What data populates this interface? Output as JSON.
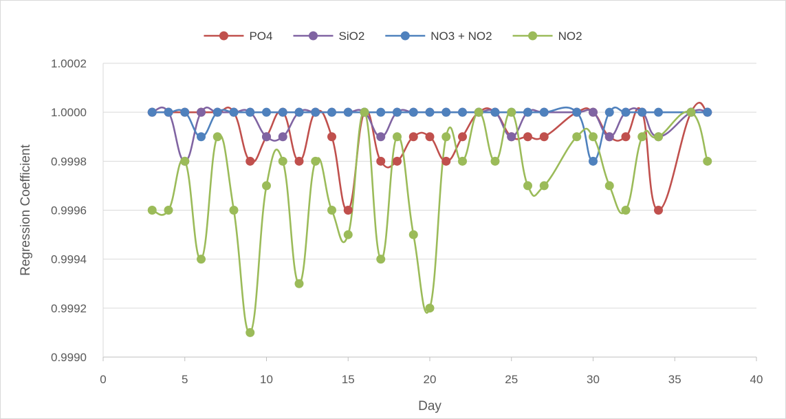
{
  "chart_data": {
    "type": "line",
    "title": "",
    "xlabel": "Day",
    "ylabel": "Regression Coefficient",
    "xlim": [
      0,
      40
    ],
    "ylim": [
      0.999,
      1.0002
    ],
    "x_ticks": [
      0,
      5,
      10,
      15,
      20,
      25,
      30,
      35,
      40
    ],
    "y_ticks": [
      0.999,
      0.9992,
      0.9994,
      0.9996,
      0.9998,
      1.0,
      1.0002
    ],
    "x_tick_labels": [
      "0",
      "5",
      "10",
      "15",
      "20",
      "25",
      "30",
      "35",
      "40"
    ],
    "y_tick_labels": [
      "0.9990",
      "0.9992",
      "0.9994",
      "0.9996",
      "0.9998",
      "1.0000",
      "1.0002"
    ],
    "grid": "horizontal",
    "legend_position": "top",
    "smooth": true,
    "series": [
      {
        "name": "PO4",
        "color": "#c0504d",
        "points": [
          [
            3,
            1.0
          ],
          [
            4,
            1.0
          ],
          [
            5,
            1.0
          ],
          [
            6,
            1.0
          ],
          [
            7,
            1.0
          ],
          [
            8,
            1.0
          ],
          [
            9,
            0.9998
          ],
          [
            10,
            0.9999
          ],
          [
            11,
            1.0
          ],
          [
            12,
            0.9998
          ],
          [
            13,
            1.0
          ],
          [
            14,
            0.9999
          ],
          [
            15,
            0.9996
          ],
          [
            16,
            1.0
          ],
          [
            17,
            0.9998
          ],
          [
            18,
            0.9998
          ],
          [
            19,
            0.9999
          ],
          [
            20,
            0.9999
          ],
          [
            21,
            0.9998
          ],
          [
            22,
            0.9999
          ],
          [
            23,
            1.0
          ],
          [
            24,
            1.0
          ],
          [
            25,
            0.9999
          ],
          [
            26,
            0.9999
          ],
          [
            27,
            0.9999
          ],
          [
            29,
            1.0
          ],
          [
            30,
            1.0
          ],
          [
            31,
            0.9999
          ],
          [
            32,
            0.9999
          ],
          [
            33,
            1.0
          ],
          [
            34,
            0.9996
          ],
          [
            36,
            1.0
          ],
          [
            37,
            1.0
          ]
        ]
      },
      {
        "name": "SiO2",
        "color": "#8064a2",
        "points": [
          [
            3,
            1.0
          ],
          [
            4,
            1.0
          ],
          [
            5,
            0.9998
          ],
          [
            6,
            1.0
          ],
          [
            7,
            1.0
          ],
          [
            8,
            1.0
          ],
          [
            9,
            1.0
          ],
          [
            10,
            0.9999
          ],
          [
            11,
            0.9999
          ],
          [
            12,
            1.0
          ],
          [
            13,
            1.0
          ],
          [
            14,
            1.0
          ],
          [
            15,
            1.0
          ],
          [
            16,
            1.0
          ],
          [
            17,
            0.9999
          ],
          [
            18,
            1.0
          ],
          [
            19,
            1.0
          ],
          [
            20,
            1.0
          ],
          [
            21,
            1.0
          ],
          [
            22,
            1.0
          ],
          [
            23,
            1.0
          ],
          [
            24,
            1.0
          ],
          [
            25,
            0.9999
          ],
          [
            26,
            1.0
          ],
          [
            27,
            1.0
          ],
          [
            29,
            1.0
          ],
          [
            30,
            1.0
          ],
          [
            31,
            0.9999
          ],
          [
            32,
            1.0
          ],
          [
            33,
            1.0
          ],
          [
            34,
            0.9999
          ],
          [
            36,
            1.0
          ],
          [
            37,
            1.0
          ]
        ]
      },
      {
        "name": "NO3 + NO2",
        "color": "#4f81bd",
        "points": [
          [
            3,
            1.0
          ],
          [
            4,
            1.0
          ],
          [
            5,
            1.0
          ],
          [
            6,
            0.9999
          ],
          [
            7,
            1.0
          ],
          [
            8,
            1.0
          ],
          [
            9,
            1.0
          ],
          [
            10,
            1.0
          ],
          [
            11,
            1.0
          ],
          [
            12,
            1.0
          ],
          [
            13,
            1.0
          ],
          [
            14,
            1.0
          ],
          [
            15,
            1.0
          ],
          [
            16,
            1.0
          ],
          [
            17,
            1.0
          ],
          [
            18,
            1.0
          ],
          [
            19,
            1.0
          ],
          [
            20,
            1.0
          ],
          [
            21,
            1.0
          ],
          [
            22,
            1.0
          ],
          [
            23,
            1.0
          ],
          [
            24,
            1.0
          ],
          [
            25,
            1.0
          ],
          [
            26,
            1.0
          ],
          [
            27,
            1.0
          ],
          [
            29,
            1.0
          ],
          [
            30,
            0.9998
          ],
          [
            31,
            1.0
          ],
          [
            32,
            1.0
          ],
          [
            33,
            1.0
          ],
          [
            34,
            1.0
          ],
          [
            36,
            1.0
          ],
          [
            37,
            1.0
          ]
        ]
      },
      {
        "name": "NO2",
        "color": "#9bbb59",
        "points": [
          [
            3,
            0.9996
          ],
          [
            4,
            0.9996
          ],
          [
            5,
            0.9998
          ],
          [
            6,
            0.9994
          ],
          [
            7,
            0.9999
          ],
          [
            8,
            0.9996
          ],
          [
            9,
            0.9991
          ],
          [
            10,
            0.9997
          ],
          [
            11,
            0.9998
          ],
          [
            12,
            0.9993
          ],
          [
            13,
            0.9998
          ],
          [
            14,
            0.9996
          ],
          [
            15,
            0.9995
          ],
          [
            16,
            1.0
          ],
          [
            17,
            0.9994
          ],
          [
            18,
            0.9999
          ],
          [
            19,
            0.9995
          ],
          [
            20,
            0.9992
          ],
          [
            21,
            0.9999
          ],
          [
            22,
            0.9998
          ],
          [
            23,
            1.0
          ],
          [
            24,
            0.9998
          ],
          [
            25,
            1.0
          ],
          [
            26,
            0.9997
          ],
          [
            27,
            0.9997
          ],
          [
            29,
            0.9999
          ],
          [
            30,
            0.9999
          ],
          [
            31,
            0.9997
          ],
          [
            32,
            0.9996
          ],
          [
            33,
            0.9999
          ],
          [
            34,
            0.9999
          ],
          [
            36,
            1.0
          ],
          [
            37,
            0.9998
          ]
        ]
      }
    ]
  }
}
